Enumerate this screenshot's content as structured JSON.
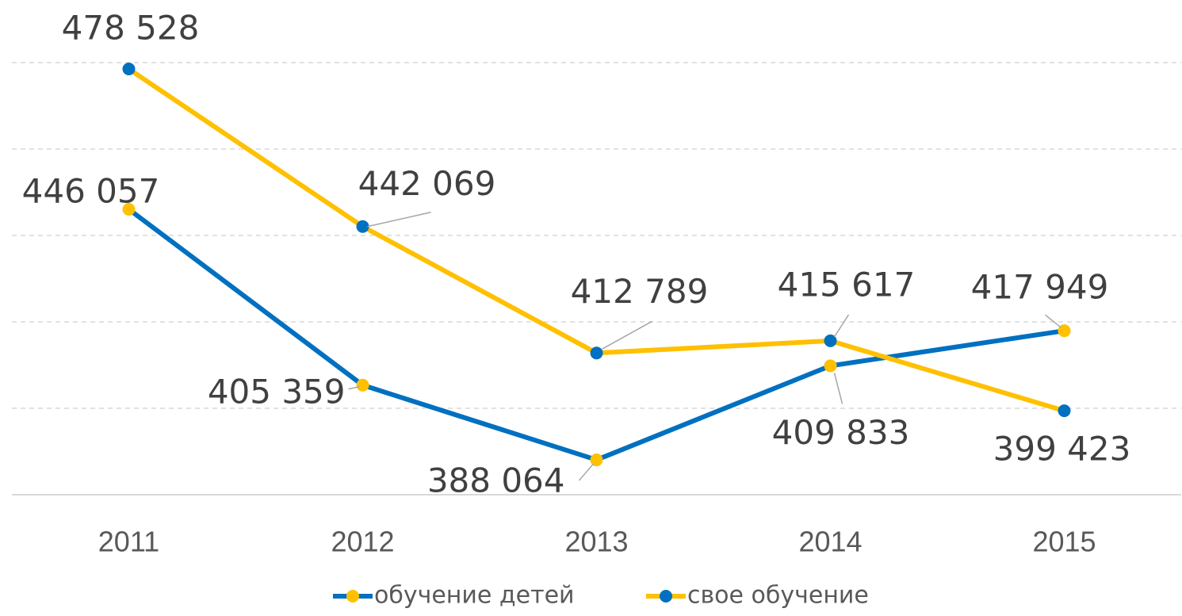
{
  "chart_data": {
    "type": "line",
    "categories": [
      "2011",
      "2012",
      "2013",
      "2014",
      "2015"
    ],
    "series": [
      {
        "name": "обучение детей",
        "color": "#0070c0",
        "marker_color": "#ffc000",
        "values": [
          446057,
          405359,
          388064,
          409833,
          417949
        ],
        "value_labels": [
          "446 057",
          "405 359",
          "388 064",
          "409 833",
          "417 949"
        ]
      },
      {
        "name": "свое обучение",
        "color": "#ffc000",
        "marker_color": "#0070c0",
        "values": [
          478528,
          442069,
          412789,
          415617,
          399423
        ],
        "value_labels": [
          "478 528",
          "442 069",
          "412 789",
          "415 617",
          "399 423"
        ]
      }
    ],
    "ylim": [
      380000,
      480000
    ],
    "yticks": [
      380000,
      400000,
      420000,
      440000,
      460000,
      480000
    ],
    "grid": true,
    "legend": "bottom"
  }
}
